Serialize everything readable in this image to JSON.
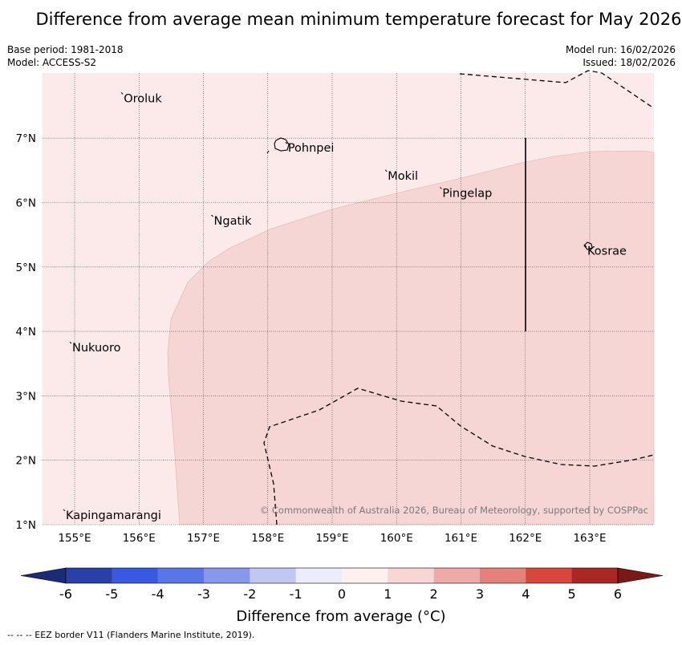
{
  "title": "Difference from average mean minimum temperature forecast for May 2026",
  "meta": {
    "base_period": "Base period: 1981-2018",
    "model": "Model: ACCESS-S2",
    "model_run": "Model run: 16/02/2026",
    "issued": "Issued: 18/02/2026"
  },
  "map": {
    "longitude_ticks": [
      "155°E",
      "156°E",
      "157°E",
      "158°E",
      "159°E",
      "160°E",
      "161°E",
      "162°E",
      "163°E"
    ],
    "latitude_ticks": [
      "7°N",
      "6°N",
      "5°N",
      "4°N",
      "3°N",
      "2°N",
      "1°N"
    ],
    "lon_range": [
      154.5,
      164.0
    ],
    "lat_range": [
      1.0,
      8.0
    ],
    "places": [
      {
        "name": "Oroluk",
        "lon": 155.75,
        "lat": 7.62
      },
      {
        "name": "Pohnpei",
        "lon": 158.3,
        "lat": 6.85
      },
      {
        "name": "Mokil",
        "lon": 159.85,
        "lat": 6.42
      },
      {
        "name": "Pingelap",
        "lon": 160.7,
        "lat": 6.15
      },
      {
        "name": "Ngatik",
        "lon": 157.15,
        "lat": 5.72
      },
      {
        "name": "Kosrae",
        "lon": 162.95,
        "lat": 5.25
      },
      {
        "name": "Nukuoro",
        "lon": 154.95,
        "lat": 3.75
      },
      {
        "name": "Kapingamarangi",
        "lon": 154.85,
        "lat": 1.15
      }
    ],
    "copyright": "© Commonwealth of Australia 2026, Bureau of Meteorology, supported by COSPPac",
    "shading_colors": {
      "zero_to_one": "#fbeae9",
      "one_to_two": "#f5d6d4"
    }
  },
  "colorbar": {
    "ticks": [
      "-6",
      "-5",
      "-4",
      "-3",
      "-2",
      "-1",
      "0",
      "1",
      "2",
      "3",
      "4",
      "5",
      "6"
    ],
    "colors": [
      "#2a3fa8",
      "#3a58e0",
      "#5a76e6",
      "#8798eb",
      "#c0c7f3",
      "#ececfb",
      "#fdf0ef",
      "#f7d6d4",
      "#eeaaa6",
      "#e5817b",
      "#d8473c",
      "#a82824"
    ],
    "low_color": "#1c2a78",
    "high_color": "#7a1a16",
    "label": "Difference from average (°C)"
  },
  "footer": "--  --  -- EEZ border V11 (Flanders Marine Institute, 2019)."
}
